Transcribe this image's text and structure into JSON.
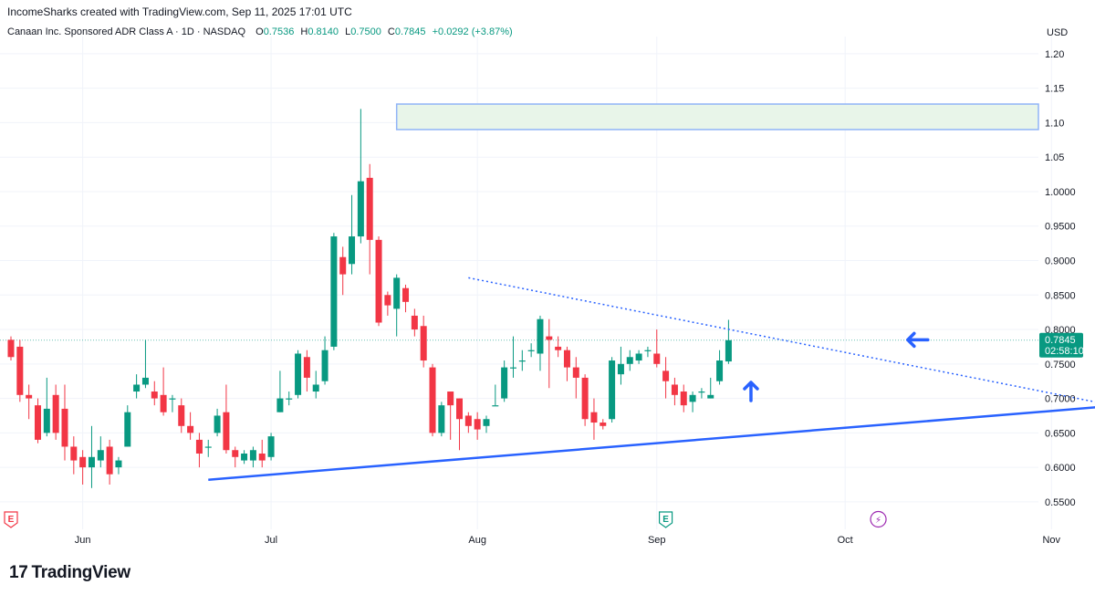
{
  "header": {
    "created_by": "IncomeSharks created with TradingView.com, Sep 11, 2025 17:01 UTC"
  },
  "symbol": {
    "name": "Canaan Inc. Sponsored ADR Class A · 1D · NASDAQ",
    "o_label": "O",
    "o_value": "0.7536",
    "h_label": "H",
    "h_value": "0.8140",
    "l_label": "L",
    "l_value": "0.7500",
    "c_label": "C",
    "c_value": "0.7845",
    "change": "+0.0292 (+3.87%)"
  },
  "currency": "USD",
  "logo": {
    "text": "TradingView"
  },
  "colors": {
    "up": "#089981",
    "down": "#f23645",
    "trendline": "#2962ff",
    "zone_fill": "#e8f5e9",
    "zone_border": "#90b4f7"
  },
  "chart_data": {
    "type": "candlestick",
    "title": "Canaan Inc. Sponsored ADR Class A · 1D · NASDAQ",
    "ylim": [
      0.53,
      1.225
    ],
    "y_ticks": [
      "1.20",
      "1.15",
      "1.10",
      "1.05",
      "1.0000",
      "0.9500",
      "0.9000",
      "0.8500",
      "0.8000",
      "0.7500",
      "0.7000",
      "0.6500",
      "0.6000",
      "0.5500"
    ],
    "y_tick_values": [
      1.2,
      1.15,
      1.1,
      1.05,
      1.0,
      0.95,
      0.9,
      0.85,
      0.8,
      0.75,
      0.7,
      0.65,
      0.6,
      0.55
    ],
    "x_ticks": [
      {
        "label": "Jun",
        "bar": 8
      },
      {
        "label": "Jul",
        "bar": 29
      },
      {
        "label": "Aug",
        "bar": 52
      },
      {
        "label": "Sep",
        "bar": 72
      },
      {
        "label": "Oct",
        "bar": 93
      },
      {
        "label": "Nov",
        "bar": 116
      }
    ],
    "last_price": "0.7845",
    "countdown": "02:58:10",
    "candles": [
      [
        0.785,
        0.76,
        0.79,
        0.755
      ],
      [
        0.775,
        0.705,
        0.785,
        0.695
      ],
      [
        0.705,
        0.7,
        0.72,
        0.67
      ],
      [
        0.69,
        0.64,
        0.7,
        0.635
      ],
      [
        0.65,
        0.685,
        0.73,
        0.645
      ],
      [
        0.705,
        0.65,
        0.72,
        0.64
      ],
      [
        0.685,
        0.63,
        0.72,
        0.61
      ],
      [
        0.63,
        0.61,
        0.645,
        0.59
      ],
      [
        0.615,
        0.6,
        0.625,
        0.575
      ],
      [
        0.6,
        0.615,
        0.66,
        0.57
      ],
      [
        0.61,
        0.625,
        0.645,
        0.6
      ],
      [
        0.63,
        0.59,
        0.64,
        0.575
      ],
      [
        0.6,
        0.61,
        0.615,
        0.59
      ],
      [
        0.63,
        0.68,
        0.69,
        0.63
      ],
      [
        0.71,
        0.72,
        0.735,
        0.7
      ],
      [
        0.72,
        0.73,
        0.785,
        0.715
      ],
      [
        0.71,
        0.7,
        0.725,
        0.69
      ],
      [
        0.705,
        0.68,
        0.745,
        0.675
      ],
      [
        0.7,
        0.7,
        0.705,
        0.68
      ],
      [
        0.69,
        0.66,
        0.7,
        0.65
      ],
      [
        0.66,
        0.65,
        0.68,
        0.64
      ],
      [
        0.64,
        0.62,
        0.65,
        0.6
      ],
      [
        0.63,
        0.63,
        0.64,
        0.615
      ],
      [
        0.65,
        0.675,
        0.685,
        0.645
      ],
      [
        0.68,
        0.625,
        0.72,
        0.62
      ],
      [
        0.625,
        0.615,
        0.63,
        0.6
      ],
      [
        0.61,
        0.62,
        0.625,
        0.605
      ],
      [
        0.61,
        0.625,
        0.63,
        0.6
      ],
      [
        0.62,
        0.61,
        0.64,
        0.6
      ],
      [
        0.615,
        0.645,
        0.65,
        0.61
      ],
      [
        0.68,
        0.7,
        0.74,
        0.68
      ],
      [
        0.7,
        0.7,
        0.71,
        0.69
      ],
      [
        0.705,
        0.765,
        0.77,
        0.7
      ],
      [
        0.76,
        0.73,
        0.77,
        0.71
      ],
      [
        0.71,
        0.72,
        0.74,
        0.7
      ],
      [
        0.725,
        0.77,
        0.79,
        0.72
      ],
      [
        0.775,
        0.935,
        0.94,
        0.77
      ],
      [
        0.905,
        0.88,
        0.92,
        0.85
      ],
      [
        0.895,
        0.935,
        0.995,
        0.88
      ],
      [
        0.935,
        1.015,
        1.12,
        0.925
      ],
      [
        1.02,
        0.93,
        1.04,
        0.88
      ],
      [
        0.93,
        0.81,
        0.935,
        0.805
      ],
      [
        0.85,
        0.835,
        0.855,
        0.82
      ],
      [
        0.83,
        0.875,
        0.88,
        0.79
      ],
      [
        0.86,
        0.84,
        0.865,
        0.825
      ],
      [
        0.82,
        0.8,
        0.83,
        0.79
      ],
      [
        0.805,
        0.755,
        0.82,
        0.745
      ],
      [
        0.745,
        0.65,
        0.75,
        0.645
      ],
      [
        0.65,
        0.69,
        0.695,
        0.645
      ],
      [
        0.71,
        0.69,
        0.705,
        0.64
      ],
      [
        0.7,
        0.67,
        0.7,
        0.625
      ],
      [
        0.675,
        0.66,
        0.68,
        0.65
      ],
      [
        0.67,
        0.655,
        0.68,
        0.64
      ],
      [
        0.66,
        0.67,
        0.675,
        0.65
      ],
      [
        0.69,
        0.69,
        0.72,
        0.69
      ],
      [
        0.7,
        0.745,
        0.755,
        0.695
      ],
      [
        0.745,
        0.745,
        0.79,
        0.73
      ],
      [
        0.755,
        0.755,
        0.77,
        0.74
      ],
      [
        0.77,
        0.77,
        0.78,
        0.76
      ],
      [
        0.765,
        0.815,
        0.82,
        0.74
      ],
      [
        0.79,
        0.785,
        0.815,
        0.715
      ],
      [
        0.775,
        0.77,
        0.79,
        0.76
      ],
      [
        0.77,
        0.745,
        0.775,
        0.725
      ],
      [
        0.745,
        0.73,
        0.76,
        0.7
      ],
      [
        0.73,
        0.67,
        0.735,
        0.66
      ],
      [
        0.68,
        0.665,
        0.7,
        0.64
      ],
      [
        0.665,
        0.66,
        0.67,
        0.655
      ],
      [
        0.67,
        0.755,
        0.76,
        0.665
      ],
      [
        0.735,
        0.75,
        0.775,
        0.72
      ],
      [
        0.75,
        0.76,
        0.77,
        0.74
      ],
      [
        0.755,
        0.765,
        0.77,
        0.75
      ],
      [
        0.77,
        0.77,
        0.775,
        0.76
      ],
      [
        0.765,
        0.75,
        0.8,
        0.745
      ],
      [
        0.74,
        0.725,
        0.76,
        0.7
      ],
      [
        0.72,
        0.705,
        0.73,
        0.69
      ],
      [
        0.71,
        0.69,
        0.72,
        0.68
      ],
      [
        0.695,
        0.705,
        0.71,
        0.68
      ],
      [
        0.71,
        0.71,
        0.715,
        0.7
      ],
      [
        0.7,
        0.705,
        0.73,
        0.7
      ],
      [
        0.725,
        0.755,
        0.77,
        0.72
      ],
      [
        0.7536,
        0.7845,
        0.814,
        0.75
      ]
    ],
    "trendline_support": [
      [
        22,
        0.582
      ],
      [
        135,
        0.702
      ]
    ],
    "trendline_resistance": [
      [
        51,
        0.875
      ],
      [
        122,
        0.692
      ]
    ],
    "resistance_zone": {
      "from_bar": 43,
      "y_low": 1.09,
      "y_high": 1.127
    },
    "arrow_markers": [
      {
        "bar": 82.5,
        "price": 0.71,
        "direction": "up"
      },
      {
        "bar": 101,
        "price": 0.785,
        "direction": "left"
      }
    ],
    "event_markers": [
      {
        "bar": 0,
        "label": "E"
      },
      {
        "bar": 73,
        "label": "E"
      },
      {
        "bar": 96.7,
        "label": "⚡"
      }
    ]
  }
}
